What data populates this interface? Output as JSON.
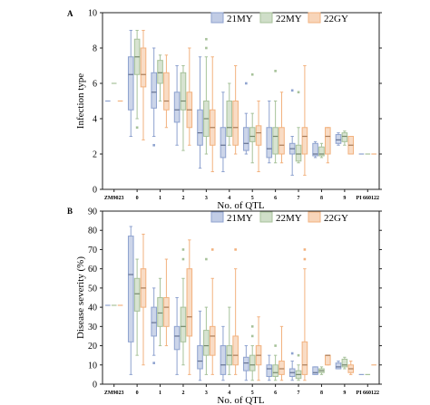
{
  "chart_data": [
    {
      "panel_label": "A",
      "type": "box",
      "ylabel": "Infection type",
      "xlabel": "No. of QTL",
      "ylim": [
        0,
        10
      ],
      "yticks": [
        "0",
        "2",
        "4",
        "6",
        "8",
        "10"
      ],
      "categories": [
        "ZM9023",
        "0",
        "1",
        "2",
        "3",
        "4",
        "5",
        "6",
        "7",
        "8",
        "9",
        "PI 660122"
      ],
      "legend_position": "top-right",
      "series": [
        {
          "name": "21MY",
          "color": "#8ea2cf",
          "boxes": [
            {
              "cat": "ZM9023",
              "const": 5
            },
            {
              "cat": "0",
              "min": 3,
              "q1": 4.5,
              "med": 6.5,
              "q3": 7.5,
              "max": 9
            },
            {
              "cat": "1",
              "min": 3,
              "q1": 4.6,
              "med": 5.5,
              "q3": 6.6,
              "max": 8,
              "outliers": [
                2.5
              ]
            },
            {
              "cat": "2",
              "min": 2.5,
              "q1": 3.8,
              "med": 4.5,
              "q3": 5.5,
              "max": 7
            },
            {
              "cat": "3",
              "min": 1.2,
              "q1": 2.5,
              "med": 3.2,
              "q3": 4.5,
              "max": 7.5
            },
            {
              "cat": "4",
              "min": 1,
              "q1": 1.8,
              "med": 2.5,
              "q3": 3.5,
              "max": 5.5
            },
            {
              "cat": "5",
              "min": 2,
              "q1": 2.2,
              "med": 2.6,
              "q3": 3.5,
              "max": 4.3,
              "outliers": [
                6
              ]
            },
            {
              "cat": "6",
              "min": 1.5,
              "q1": 1.8,
              "med": 2.3,
              "q3": 3.5,
              "max": 5
            },
            {
              "cat": "7",
              "min": 0.8,
              "q1": 2,
              "med": 2.3,
              "q3": 2.6,
              "max": 3,
              "outliers": [
                5.6
              ]
            },
            {
              "cat": "8",
              "min": 1.8,
              "q1": 1.9,
              "med": 2,
              "q3": 2.6,
              "max": 2.7
            },
            {
              "cat": "9",
              "min": 2.5,
              "q1": 2.6,
              "med": 2.8,
              "q3": 3.1,
              "max": 3.2
            },
            {
              "cat": "PI 660122",
              "const": 2
            }
          ]
        },
        {
          "name": "22MY",
          "color": "#a7c29a",
          "boxes": [
            {
              "cat": "ZM9023",
              "const": 6
            },
            {
              "cat": "0",
              "min": 4,
              "q1": 6.5,
              "med": 7.5,
              "q3": 8.5,
              "max": 9,
              "outliers": [
                3.5
              ]
            },
            {
              "cat": "1",
              "min": 5,
              "q1": 6,
              "med": 6.6,
              "q3": 7.3,
              "max": 7.6
            },
            {
              "cat": "2",
              "min": 2.2,
              "q1": 4.5,
              "med": 5,
              "q3": 6.6,
              "max": 7
            },
            {
              "cat": "3",
              "min": 2,
              "q1": 3,
              "med": 4,
              "q3": 5,
              "max": 7.5,
              "outliers": [
                8,
                8.5
              ]
            },
            {
              "cat": "4",
              "min": 2.5,
              "q1": 3,
              "med": 3.5,
              "q3": 5,
              "max": 6
            },
            {
              "cat": "5",
              "min": 1.5,
              "q1": 2.7,
              "med": 3,
              "q3": 3.5,
              "max": 4.3,
              "outliers": [
                6.5
              ]
            },
            {
              "cat": "6",
              "min": 1.5,
              "q1": 2,
              "med": 3,
              "q3": 3.5,
              "max": 5,
              "outliers": [
                6.7
              ]
            },
            {
              "cat": "7",
              "min": 1.5,
              "q1": 1.6,
              "med": 2,
              "q3": 2.5,
              "max": 3.5,
              "outliers": [
                5.5
              ]
            },
            {
              "cat": "8",
              "min": 1.8,
              "q1": 1.9,
              "med": 2,
              "q3": 2.4,
              "max": 2.6
            },
            {
              "cat": "9",
              "min": 2.5,
              "q1": 2.7,
              "med": 3,
              "q3": 3.2,
              "max": 3.3
            },
            {
              "cat": "PI 660122",
              "const": 2
            }
          ]
        },
        {
          "name": "22GY",
          "color": "#f2b27f",
          "boxes": [
            {
              "cat": "ZM9023",
              "const": 5
            },
            {
              "cat": "0",
              "min": 2.8,
              "q1": 5.8,
              "med": 6.5,
              "q3": 8,
              "max": 9
            },
            {
              "cat": "1",
              "min": 3.5,
              "q1": 4.5,
              "med": 5,
              "q3": 6.6,
              "max": 7.6
            },
            {
              "cat": "2",
              "min": 2.5,
              "q1": 3.5,
              "med": 4.5,
              "q3": 5.5,
              "max": 8
            },
            {
              "cat": "3",
              "min": 1,
              "q1": 2.5,
              "med": 3.5,
              "q3": 4.5,
              "max": 7.5
            },
            {
              "cat": "4",
              "min": 2,
              "q1": 2.5,
              "med": 3.5,
              "q3": 5,
              "max": 7
            },
            {
              "cat": "5",
              "min": 1,
              "q1": 2.5,
              "med": 3.2,
              "q3": 3.6,
              "max": 5
            },
            {
              "cat": "6",
              "min": 1.5,
              "q1": 2,
              "med": 2.5,
              "q3": 3.5,
              "max": 5.5
            },
            {
              "cat": "7",
              "min": 0.8,
              "q1": 2,
              "med": 3,
              "q3": 3.5,
              "max": 7
            },
            {
              "cat": "8",
              "min": 1.5,
              "q1": 2,
              "med": 3,
              "q3": 3.5,
              "max": 3.5
            },
            {
              "cat": "9",
              "min": 2,
              "q1": 2,
              "med": 2.5,
              "q3": 3,
              "max": 3
            },
            {
              "cat": "PI 660122",
              "const": 2
            }
          ]
        }
      ]
    },
    {
      "panel_label": "B",
      "type": "box",
      "ylabel": "Disease severity (%)",
      "xlabel": "No. of QTL",
      "ylim": [
        0,
        90
      ],
      "yticks": [
        "0",
        "10",
        "20",
        "30",
        "40",
        "50",
        "60",
        "70",
        "80",
        "90"
      ],
      "categories": [
        "ZM9023",
        "0",
        "1",
        "2",
        "3",
        "4",
        "5",
        "6",
        "7",
        "8",
        "9",
        "PI 660122"
      ],
      "legend_position": "top-right",
      "series": [
        {
          "name": "21MY",
          "color": "#8ea2cf",
          "boxes": [
            {
              "cat": "ZM9023",
              "const": 41
            },
            {
              "cat": "0",
              "min": 5,
              "q1": 22,
              "med": 57,
              "q3": 77,
              "max": 82
            },
            {
              "cat": "1",
              "min": 15,
              "q1": 25,
              "med": 32,
              "q3": 40,
              "max": 50,
              "outliers": [
                11
              ]
            },
            {
              "cat": "2",
              "min": 5,
              "q1": 18,
              "med": 25,
              "q3": 30,
              "max": 45
            },
            {
              "cat": "3",
              "min": 2,
              "q1": 8,
              "med": 12,
              "q3": 20,
              "max": 38
            },
            {
              "cat": "4",
              "min": 2,
              "q1": 5,
              "med": 10,
              "q3": 20,
              "max": 30
            },
            {
              "cat": "5",
              "min": 2,
              "q1": 7,
              "med": 11,
              "q3": 14,
              "max": 20
            },
            {
              "cat": "6",
              "min": 2,
              "q1": 4,
              "med": 8,
              "q3": 10,
              "max": 15
            },
            {
              "cat": "7",
              "min": 2,
              "q1": 4,
              "med": 6,
              "q3": 8,
              "max": 12,
              "outliers": [
                16
              ]
            },
            {
              "cat": "8",
              "min": 5,
              "q1": 5,
              "med": 6,
              "q3": 9,
              "max": 9
            },
            {
              "cat": "9",
              "min": 8,
              "q1": 8,
              "med": 9,
              "q3": 11,
              "max": 12
            },
            {
              "cat": "PI 660122",
              "const": 5
            }
          ]
        },
        {
          "name": "22MY",
          "color": "#a7c29a",
          "boxes": [
            {
              "cat": "ZM9023",
              "const": 41
            },
            {
              "cat": "0",
              "min": 15,
              "q1": 38,
              "med": 47,
              "q3": 55,
              "max": 65
            },
            {
              "cat": "1",
              "min": 20,
              "q1": 30,
              "med": 37,
              "q3": 45,
              "max": 55
            },
            {
              "cat": "2",
              "min": 10,
              "q1": 22,
              "med": 30,
              "q3": 40,
              "max": 55,
              "outliers": [
                65,
                70
              ]
            },
            {
              "cat": "3",
              "min": 5,
              "q1": 15,
              "med": 20,
              "q3": 28,
              "max": 40,
              "outliers": [
                65
              ]
            },
            {
              "cat": "4",
              "min": 5,
              "q1": 10,
              "med": 15,
              "q3": 20,
              "max": 40
            },
            {
              "cat": "5",
              "min": 2,
              "q1": 7,
              "med": 10,
              "q3": 15,
              "max": 20,
              "outliers": [
                25,
                30
              ]
            },
            {
              "cat": "6",
              "min": 2,
              "q1": 4,
              "med": 6,
              "q3": 10,
              "max": 15,
              "outliers": [
                20
              ]
            },
            {
              "cat": "7",
              "min": 2,
              "q1": 3,
              "med": 5,
              "q3": 7,
              "max": 10,
              "outliers": [
                15
              ]
            },
            {
              "cat": "8",
              "min": 5,
              "q1": 6,
              "med": 7,
              "q3": 8,
              "max": 9
            },
            {
              "cat": "9",
              "min": 8,
              "q1": 9,
              "med": 10,
              "q3": 13,
              "max": 14
            },
            {
              "cat": "PI 660122",
              "const": 5
            }
          ]
        },
        {
          "name": "22GY",
          "color": "#f2b27f",
          "boxes": [
            {
              "cat": "ZM9023",
              "const": 41
            },
            {
              "cat": "0",
              "min": 10,
              "q1": 40,
              "med": 50,
              "q3": 60,
              "max": 78
            },
            {
              "cat": "1",
              "min": 20,
              "q1": 30,
              "med": 40,
              "q3": 45,
              "max": 65
            },
            {
              "cat": "2",
              "min": 5,
              "q1": 25,
              "med": 35,
              "q3": 60,
              "max": 75
            },
            {
              "cat": "3",
              "min": 5,
              "q1": 15,
              "med": 25,
              "q3": 30,
              "max": 55,
              "outliers": [
                70
              ]
            },
            {
              "cat": "4",
              "min": 5,
              "q1": 10,
              "med": 15,
              "q3": 25,
              "max": 60,
              "outliers": [
                70
              ]
            },
            {
              "cat": "5",
              "min": 2,
              "q1": 10,
              "med": 15,
              "q3": 20,
              "max": 35
            },
            {
              "cat": "6",
              "min": 2,
              "q1": 5,
              "med": 8,
              "q3": 12,
              "max": 30
            },
            {
              "cat": "7",
              "min": 2,
              "q1": 5,
              "med": 10,
              "q3": 22,
              "max": 60,
              "outliers": [
                70,
                65
              ]
            },
            {
              "cat": "8",
              "min": 10,
              "q1": 10,
              "med": 15,
              "q3": 15,
              "max": 15
            },
            {
              "cat": "9",
              "min": 5,
              "q1": 6,
              "med": 8,
              "q3": 10,
              "max": 12
            },
            {
              "cat": "PI 660122",
              "const": 10
            }
          ]
        }
      ]
    }
  ]
}
